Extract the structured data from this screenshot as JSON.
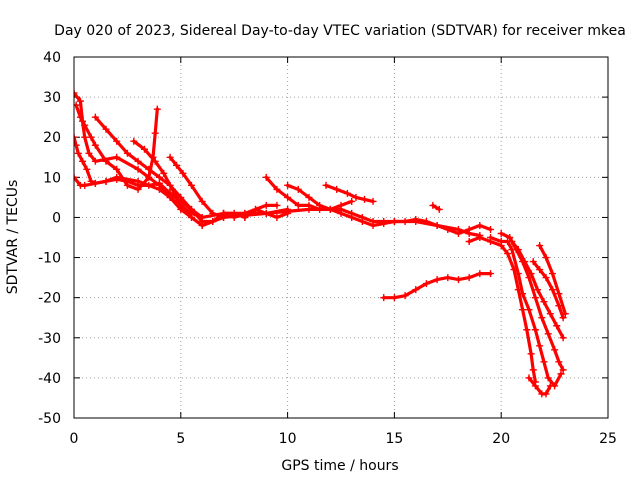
{
  "chart_data": {
    "type": "scatter",
    "title": "Day 020 of 2023, Sidereal Day-to-day VTEC variation (SDTVAR) for receiver mkea",
    "xlabel": "GPS time / hours",
    "ylabel": "SDTVAR / TECUs",
    "xlim": [
      0,
      25
    ],
    "ylim": [
      -50,
      40
    ],
    "x_ticks": [
      0,
      5,
      10,
      15,
      20,
      25
    ],
    "y_ticks": [
      -50,
      -40,
      -30,
      -20,
      -10,
      0,
      10,
      20,
      30,
      40
    ],
    "grid": true,
    "marker": "plus",
    "color": "#ff0000",
    "series": [
      {
        "name": "trace-1",
        "points": [
          [
            0.0,
            31
          ],
          [
            0.3,
            29
          ],
          [
            0.4,
            24
          ],
          [
            0.5,
            20
          ],
          [
            0.7,
            16
          ],
          [
            1.0,
            14
          ],
          [
            2.0,
            15
          ],
          [
            3.0,
            12
          ],
          [
            4.0,
            8
          ],
          [
            4.5,
            5
          ],
          [
            5.0,
            2
          ],
          [
            6.0,
            -2
          ],
          [
            7.0,
            0
          ],
          [
            8.0,
            0.5
          ],
          [
            9.0,
            1
          ],
          [
            10.0,
            2
          ]
        ]
      },
      {
        "name": "trace-2",
        "points": [
          [
            0.1,
            28
          ],
          [
            0.3,
            25
          ],
          [
            0.5,
            23
          ],
          [
            0.8,
            20
          ],
          [
            1.0,
            18
          ],
          [
            1.5,
            14
          ],
          [
            2.0,
            12
          ],
          [
            2.5,
            8
          ],
          [
            3.0,
            7
          ],
          [
            3.5,
            10
          ],
          [
            3.7,
            15
          ],
          [
            3.8,
            21
          ],
          [
            3.9,
            27
          ]
        ]
      },
      {
        "name": "trace-3",
        "points": [
          [
            0.0,
            20
          ],
          [
            0.1,
            18
          ],
          [
            0.2,
            16
          ],
          [
            0.4,
            14
          ],
          [
            0.6,
            12
          ],
          [
            0.8,
            9
          ],
          [
            1.0,
            8.5
          ],
          [
            1.5,
            9
          ],
          [
            2.0,
            9.5
          ],
          [
            2.5,
            9
          ],
          [
            3.0,
            8
          ],
          [
            3.5,
            8
          ],
          [
            4.0,
            8.5
          ],
          [
            4.5,
            6
          ],
          [
            5.0,
            4
          ],
          [
            5.5,
            2
          ],
          [
            6.0,
            -1
          ],
          [
            6.5,
            -1
          ],
          [
            7.0,
            1
          ],
          [
            7.5,
            1
          ],
          [
            8.0,
            0
          ]
        ]
      },
      {
        "name": "trace-4",
        "points": [
          [
            0.0,
            10
          ],
          [
            0.3,
            8
          ],
          [
            0.5,
            8
          ],
          [
            1.0,
            8.5
          ],
          [
            1.5,
            9
          ],
          [
            2.0,
            10
          ],
          [
            3.0,
            9
          ],
          [
            4.0,
            7
          ],
          [
            4.5,
            5
          ],
          [
            5.0,
            3
          ],
          [
            5.5,
            0
          ],
          [
            6.0,
            -2
          ],
          [
            6.5,
            -1
          ],
          [
            7.0,
            1
          ],
          [
            7.5,
            0
          ],
          [
            8.0,
            1
          ],
          [
            8.5,
            2
          ],
          [
            9.0,
            1
          ],
          [
            9.5,
            0
          ],
          [
            10.0,
            1
          ]
        ]
      },
      {
        "name": "trace-5",
        "points": [
          [
            1.0,
            25
          ],
          [
            1.5,
            22
          ],
          [
            2.0,
            19
          ],
          [
            2.5,
            16
          ],
          [
            3.0,
            14
          ],
          [
            3.5,
            12
          ],
          [
            4.0,
            10
          ],
          [
            4.5,
            8
          ],
          [
            5.0,
            5
          ],
          [
            5.5,
            2
          ],
          [
            6.0,
            0
          ]
        ]
      },
      {
        "name": "trace-6",
        "points": [
          [
            2.8,
            19
          ],
          [
            3.3,
            17
          ],
          [
            3.8,
            14
          ],
          [
            4.2,
            11
          ],
          [
            4.6,
            7
          ],
          [
            5.0,
            3
          ],
          [
            5.5,
            1
          ],
          [
            6.0,
            0
          ],
          [
            7.0,
            1
          ],
          [
            8.0,
            1
          ],
          [
            9.0,
            1
          ],
          [
            10.0,
            1.5
          ],
          [
            11.0,
            2
          ],
          [
            12.0,
            2
          ],
          [
            12.5,
            3
          ],
          [
            13.0,
            4
          ]
        ]
      },
      {
        "name": "trace-7",
        "points": [
          [
            4.5,
            15
          ],
          [
            4.8,
            13
          ],
          [
            5.1,
            11
          ],
          [
            5.5,
            8
          ],
          [
            6.0,
            4
          ],
          [
            6.5,
            1
          ],
          [
            7.0,
            0
          ],
          [
            7.5,
            1
          ],
          [
            8.0,
            0
          ],
          [
            8.5,
            2
          ],
          [
            9.0,
            3
          ],
          [
            9.5,
            3
          ]
        ]
      },
      {
        "name": "trace-8",
        "points": [
          [
            9.0,
            10
          ],
          [
            9.5,
            7
          ],
          [
            10.0,
            5
          ],
          [
            10.5,
            3
          ],
          [
            11.0,
            3
          ],
          [
            11.5,
            2
          ],
          [
            12.0,
            2
          ],
          [
            12.5,
            2
          ],
          [
            13.0,
            1
          ],
          [
            13.5,
            0
          ],
          [
            14.0,
            -1
          ],
          [
            14.5,
            -1
          ],
          [
            15.0,
            -1
          ],
          [
            16.0,
            -1
          ],
          [
            17.0,
            -2
          ],
          [
            18.0,
            -3
          ],
          [
            18.5,
            -4
          ],
          [
            19.0,
            -4.5
          ]
        ]
      },
      {
        "name": "trace-9",
        "points": [
          [
            10.0,
            8
          ],
          [
            10.5,
            7
          ],
          [
            11.0,
            5
          ],
          [
            11.5,
            3
          ],
          [
            12.0,
            2
          ],
          [
            12.5,
            1
          ],
          [
            13.0,
            0
          ],
          [
            13.5,
            -1
          ],
          [
            14.0,
            -2
          ],
          [
            14.5,
            -1.5
          ],
          [
            15.0,
            -1
          ],
          [
            15.5,
            -1
          ],
          [
            16.0,
            -0.5
          ],
          [
            16.5,
            -1
          ],
          [
            17.0,
            -2
          ],
          [
            17.5,
            -3
          ],
          [
            18.0,
            -4
          ],
          [
            18.5,
            -3
          ],
          [
            19.0,
            -2
          ],
          [
            19.5,
            -3
          ]
        ]
      },
      {
        "name": "trace-10",
        "points": [
          [
            11.8,
            8
          ],
          [
            12.3,
            7
          ],
          [
            12.8,
            6
          ],
          [
            13.2,
            5
          ],
          [
            13.6,
            4.5
          ],
          [
            14.0,
            4
          ]
        ]
      },
      {
        "name": "trace-11",
        "points": [
          [
            16.8,
            3
          ],
          [
            17.1,
            2
          ]
        ]
      },
      {
        "name": "trace-12",
        "points": [
          [
            14.5,
            -20
          ],
          [
            15.0,
            -20
          ],
          [
            15.5,
            -19.5
          ],
          [
            16.0,
            -18
          ],
          [
            16.5,
            -16.5
          ],
          [
            17.0,
            -15.5
          ],
          [
            17.5,
            -15
          ],
          [
            18.0,
            -15.5
          ],
          [
            18.5,
            -15
          ],
          [
            19.0,
            -14
          ],
          [
            19.5,
            -14
          ]
        ]
      },
      {
        "name": "trace-13",
        "points": [
          [
            18.5,
            -6
          ],
          [
            19.0,
            -5
          ],
          [
            19.5,
            -6
          ],
          [
            20.0,
            -7
          ],
          [
            20.3,
            -9
          ],
          [
            20.6,
            -13
          ],
          [
            20.8,
            -18
          ],
          [
            21.0,
            -23
          ],
          [
            21.2,
            -28
          ],
          [
            21.4,
            -34
          ],
          [
            21.5,
            -38
          ],
          [
            21.6,
            -41
          ]
        ]
      },
      {
        "name": "trace-14",
        "points": [
          [
            19.5,
            -5
          ],
          [
            20.0,
            -6
          ],
          [
            20.3,
            -6
          ],
          [
            20.5,
            -8
          ],
          [
            20.8,
            -14
          ],
          [
            21.0,
            -19
          ],
          [
            21.3,
            -23
          ],
          [
            21.6,
            -28
          ],
          [
            21.8,
            -32
          ],
          [
            22.0,
            -36
          ],
          [
            22.2,
            -40
          ],
          [
            22.5,
            -42
          ],
          [
            22.8,
            -39
          ]
        ]
      },
      {
        "name": "trace-15",
        "points": [
          [
            20.0,
            -4
          ],
          [
            20.4,
            -5
          ],
          [
            20.7,
            -8
          ],
          [
            21.0,
            -11
          ],
          [
            21.3,
            -15
          ],
          [
            21.6,
            -20
          ],
          [
            21.9,
            -25
          ],
          [
            22.2,
            -29
          ],
          [
            22.5,
            -33
          ],
          [
            22.7,
            -36
          ],
          [
            22.9,
            -38
          ]
        ]
      },
      {
        "name": "trace-16",
        "points": [
          [
            20.5,
            -6
          ],
          [
            20.8,
            -8
          ],
          [
            21.1,
            -11
          ],
          [
            21.4,
            -14
          ],
          [
            21.7,
            -18
          ],
          [
            22.0,
            -21
          ],
          [
            22.3,
            -24
          ],
          [
            22.6,
            -27
          ],
          [
            22.9,
            -30
          ]
        ]
      },
      {
        "name": "trace-17",
        "points": [
          [
            21.5,
            -11
          ],
          [
            21.8,
            -13
          ],
          [
            22.1,
            -15
          ],
          [
            22.4,
            -18
          ],
          [
            22.7,
            -22
          ],
          [
            22.9,
            -25
          ]
        ]
      },
      {
        "name": "trace-18",
        "points": [
          [
            21.8,
            -7
          ],
          [
            22.1,
            -10
          ],
          [
            22.4,
            -14
          ],
          [
            22.7,
            -19
          ],
          [
            23.0,
            -24
          ]
        ]
      },
      {
        "name": "trace-19",
        "points": [
          [
            21.3,
            -40
          ],
          [
            21.6,
            -42
          ],
          [
            21.9,
            -44
          ],
          [
            22.1,
            -44
          ],
          [
            22.3,
            -42
          ]
        ]
      }
    ]
  }
}
